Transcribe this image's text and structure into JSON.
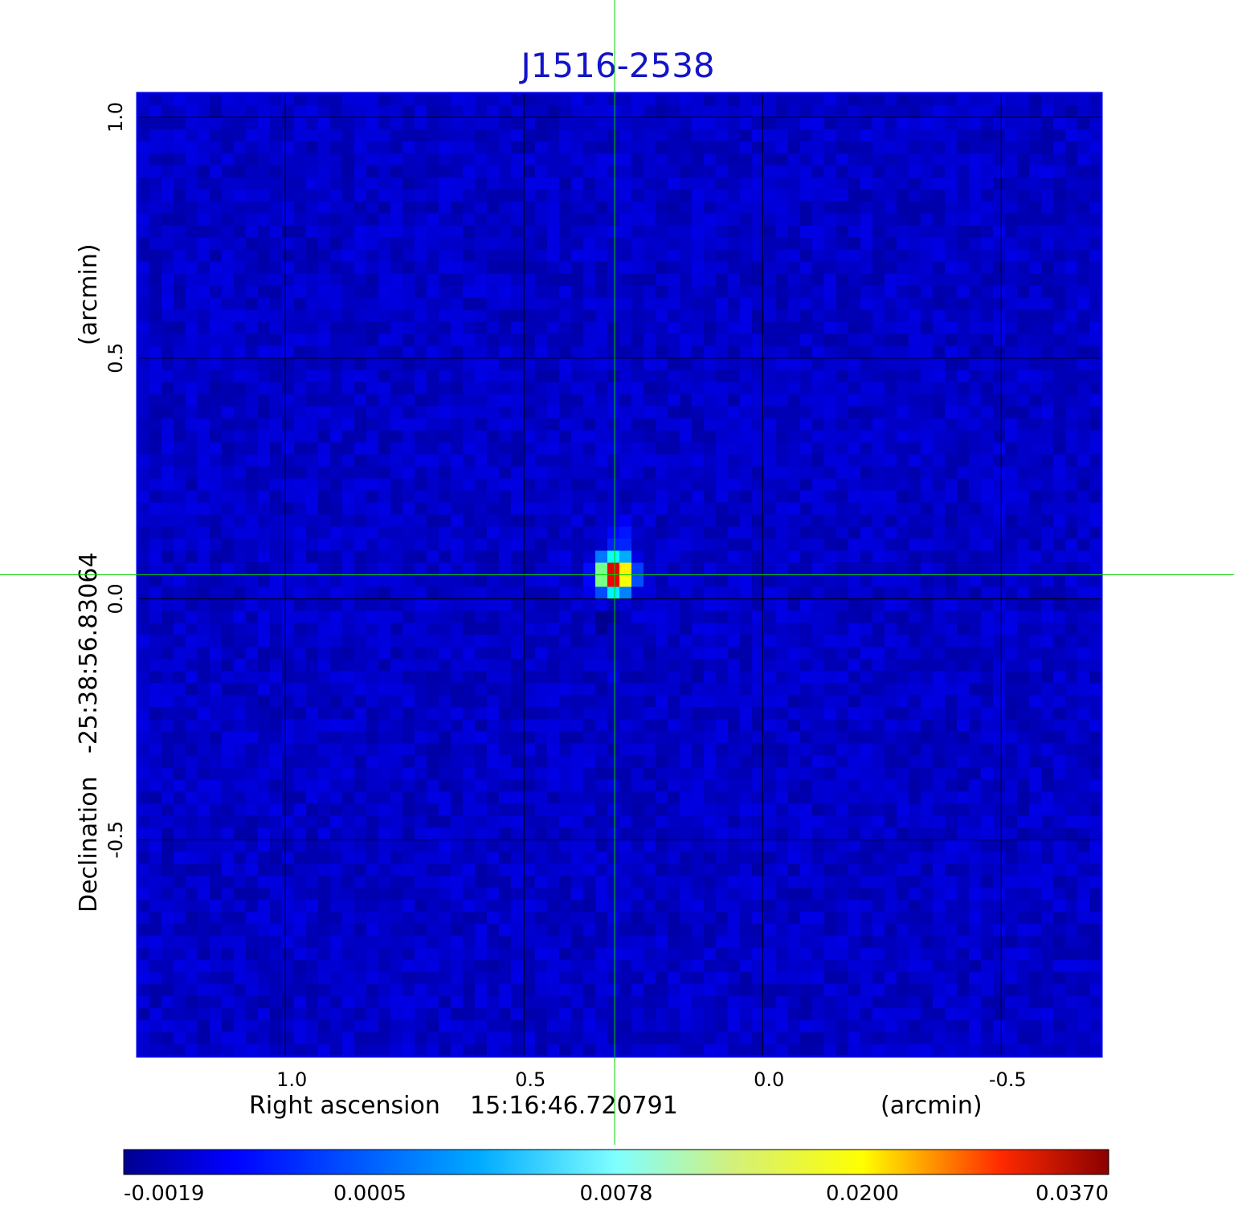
{
  "chart_data": {
    "type": "heatmap",
    "title": "J1516-2538",
    "xlabel": {
      "name": "Right ascension",
      "reference": "15:16:46.720791",
      "unit": "(arcmin)"
    },
    "ylabel": {
      "name": "Declination",
      "reference": "-25:38:56.83064",
      "unit": "(arcmin)"
    },
    "x_ticks": [
      "1.0",
      "0.5",
      "0.0",
      "-0.5"
    ],
    "x_tick_values": [
      1.0,
      0.5,
      0.0,
      -0.5
    ],
    "y_ticks": [
      "1.0",
      "0.5",
      "0.0",
      "-0.5"
    ],
    "y_tick_values": [
      1.0,
      0.5,
      0.0,
      -0.5
    ],
    "xlim": [
      1.31,
      -0.71
    ],
    "ylim": [
      -0.95,
      1.05
    ],
    "grid": true,
    "crosshair": {
      "x": 0.31,
      "y": 0.05,
      "color": "#00d000"
    },
    "colormap": "jet",
    "colorbar": {
      "ticks": [
        "-0.0019",
        "0.0005",
        "0.0078",
        "0.0200",
        "0.0370"
      ],
      "tick_values": [
        -0.0019,
        0.0005,
        0.0078,
        0.02,
        0.037
      ],
      "min": -0.0019,
      "max": 0.037
    },
    "image_summary": {
      "background_level": 0.0008,
      "peak_value": 0.037,
      "peak_position": {
        "x": 0.31,
        "y": 0.05
      },
      "negative_lobe_position": {
        "x": 0.32,
        "y": -0.04
      },
      "negative_lobe_value": -0.0019
    },
    "colors": {
      "title": "#1414c8",
      "frame": "#0000e6",
      "grid": "#000000",
      "crosshair": "#00d000"
    }
  }
}
